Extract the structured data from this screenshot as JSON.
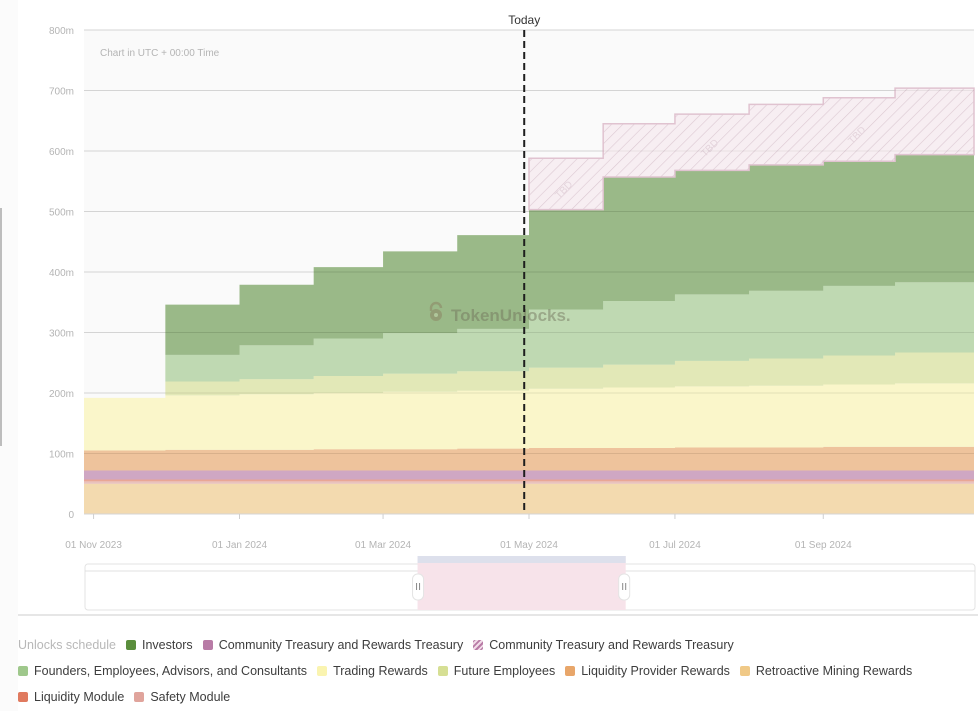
{
  "chart_data": {
    "type": "area",
    "stacked": true,
    "step": true,
    "note": "Chart in UTC + 00:00 Time",
    "today_label": "Today",
    "today_date": "2024-04-29",
    "watermark": "TokenUnlocks.",
    "ylabel": "",
    "xlabel": "",
    "ylim": [
      0,
      800
    ],
    "y_unit": "m",
    "y_ticks": [
      "0",
      "100m",
      "200m",
      "300m",
      "400m",
      "500m",
      "600m",
      "700m",
      "800m"
    ],
    "y_tick_values": [
      0,
      100,
      200,
      300,
      400,
      500,
      600,
      700,
      800
    ],
    "x_ticks": [
      "01 Nov 2023",
      "01 Jan 2024",
      "01 Mar 2024",
      "01 May 2024",
      "01 Jul 2024",
      "01 Sep 2024"
    ],
    "x_tick_dates": [
      "2023-11-01",
      "2024-01-01",
      "2024-03-01",
      "2024-05-01",
      "2024-07-01",
      "2024-09-01"
    ],
    "x_range": [
      "2023-10-28",
      "2024-11-03"
    ],
    "x": [
      "2023-10-28",
      "2023-12-01",
      "2024-01-01",
      "2024-02-01",
      "2024-03-01",
      "2024-04-01",
      "2024-05-01",
      "2024-06-01",
      "2024-07-01",
      "2024-08-01",
      "2024-09-01",
      "2024-10-01",
      "2024-11-03"
    ],
    "grid": true,
    "legend_position": "bottom",
    "series": [
      {
        "name": "Retroactive Mining Rewards",
        "color": "#f0c987",
        "values": [
          50,
          50,
          50,
          50,
          50,
          50,
          50,
          50,
          50,
          50,
          50,
          50,
          50
        ]
      },
      {
        "name": "Safety Module",
        "color": "#e0a49c",
        "values": [
          4,
          4,
          4,
          4,
          4,
          4,
          4,
          4,
          4,
          4,
          4,
          4,
          4
        ]
      },
      {
        "name": "Liquidity Module",
        "color": "#e07a5f",
        "values": [
          3,
          3,
          3,
          3,
          3,
          3,
          3,
          3,
          3,
          3,
          3,
          3,
          3
        ]
      },
      {
        "name": "Community Treasury and Rewards Treasury",
        "color": "#b87ba6",
        "values": [
          15,
          15,
          15,
          15,
          15,
          15,
          15,
          15,
          15,
          15,
          15,
          15,
          15
        ]
      },
      {
        "name": "Liquidity Provider Rewards",
        "color": "#e8a66a",
        "values": [
          33,
          34,
          34,
          35,
          35,
          36,
          37,
          37,
          38,
          38,
          39,
          39,
          40
        ]
      },
      {
        "name": "Trading Rewards",
        "color": "#faf4b0",
        "values": [
          87,
          90,
          92,
          93,
          95,
          96,
          98,
          100,
          101,
          102,
          103,
          105,
          108
        ]
      },
      {
        "name": "Future Employees",
        "color": "#d6df94",
        "values": [
          0,
          23,
          25,
          28,
          30,
          32,
          35,
          38,
          42,
          45,
          48,
          51,
          55
        ]
      },
      {
        "name": "Founders, Employees, Advisors, and Consultants",
        "color": "#9fc88c",
        "values": [
          0,
          44,
          56,
          62,
          67,
          70,
          96,
          105,
          110,
          112,
          115,
          116,
          118
        ]
      },
      {
        "name": "Investors",
        "color": "#5a8e3c",
        "values": [
          0,
          83,
          100,
          118,
          135,
          155,
          165,
          205,
          205,
          208,
          206,
          211,
          210
        ]
      }
    ],
    "tbd_series": {
      "name": "Community Treasury and Rewards Treasury",
      "color": "#b87ba6",
      "pattern": "hatched",
      "label": "TBD",
      "start": "2024-05-01",
      "values": [
        0,
        0,
        0,
        0,
        0,
        0,
        85,
        88,
        93,
        100,
        105,
        110,
        112
      ]
    }
  },
  "legend": {
    "title": "Unlocks schedule",
    "rows": [
      [
        {
          "label": "Investors",
          "color": "#5a8e3c",
          "hatched": false
        },
        {
          "label": "Community Treasury and Rewards Treasury",
          "color": "#b87ba6",
          "hatched": false
        },
        {
          "label": "Community Treasury and Rewards Treasury",
          "color": "#b87ba6",
          "hatched": true
        }
      ],
      [
        {
          "label": "Founders, Employees, Advisors, and Consultants",
          "color": "#9fc88c",
          "hatched": false
        },
        {
          "label": "Trading Rewards",
          "color": "#faf4b0",
          "hatched": false
        },
        {
          "label": "Future Employees",
          "color": "#d6df94",
          "hatched": false
        },
        {
          "label": "Liquidity Provider Rewards",
          "color": "#e8a66a",
          "hatched": false
        },
        {
          "label": "Retroactive Mining Rewards",
          "color": "#f0c987",
          "hatched": false
        }
      ],
      [
        {
          "label": "Liquidity Module",
          "color": "#e07a5f",
          "hatched": false
        },
        {
          "label": "Safety Module",
          "color": "#e0a49c",
          "hatched": false
        }
      ]
    ]
  },
  "range_selector": {
    "start": "2024-03-15",
    "end": "2024-06-10"
  }
}
